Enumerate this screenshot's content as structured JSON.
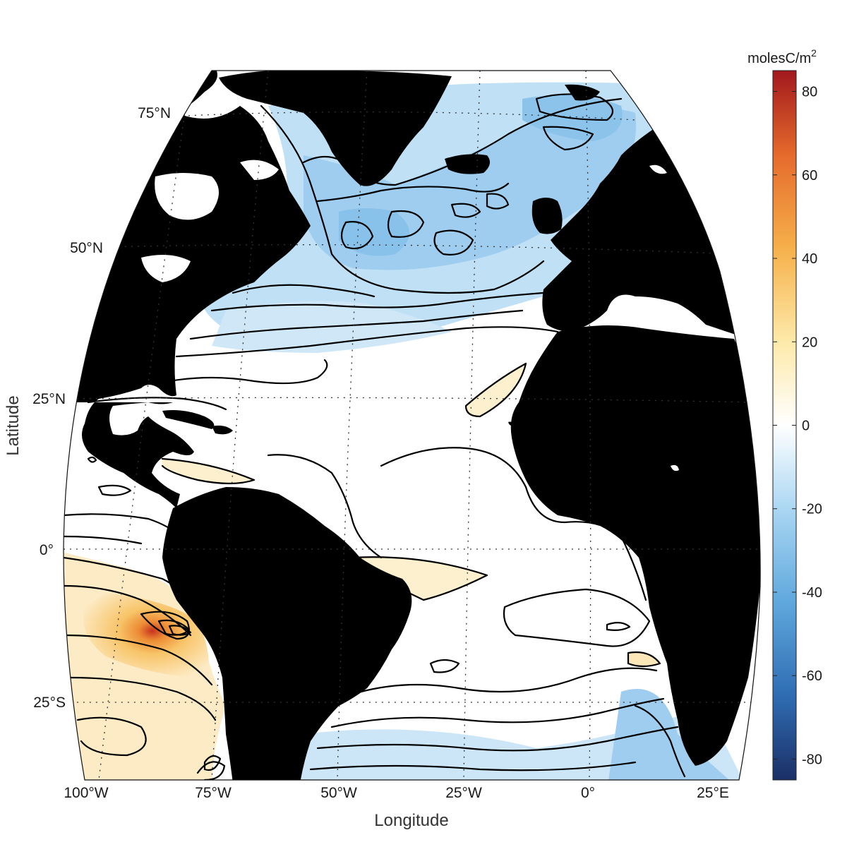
{
  "map": {
    "xlabel": "Longitude",
    "ylabel": "Latitude",
    "lon_ticks": [
      "100°W",
      "75°W",
      "50°W",
      "25°W",
      "0°",
      "25°E"
    ],
    "lat_ticks": [
      "75°N",
      "50°N",
      "25°N",
      "0°",
      "25°S"
    ],
    "extent": {
      "lon": [
        -100,
        30
      ],
      "lat": [
        -40,
        80
      ]
    },
    "grid": true,
    "land_color": "#000000"
  },
  "colorbar": {
    "unit_base": "molesC/m",
    "unit_exp": "2",
    "range": [
      -85,
      85
    ],
    "ticks": [
      "80",
      "60",
      "40",
      "20",
      "0",
      "-20",
      "-40",
      "-60",
      "-80"
    ],
    "tick_values": [
      80,
      60,
      40,
      20,
      0,
      -20,
      -40,
      -60,
      -80
    ],
    "colors": [
      "#1b2f66",
      "#2f6db3",
      "#5fa8dd",
      "#a9d6f2",
      "#ffffff",
      "#fde9a8",
      "#f6b04a",
      "#e56b2c",
      "#a2181d"
    ],
    "placement": "right"
  }
}
